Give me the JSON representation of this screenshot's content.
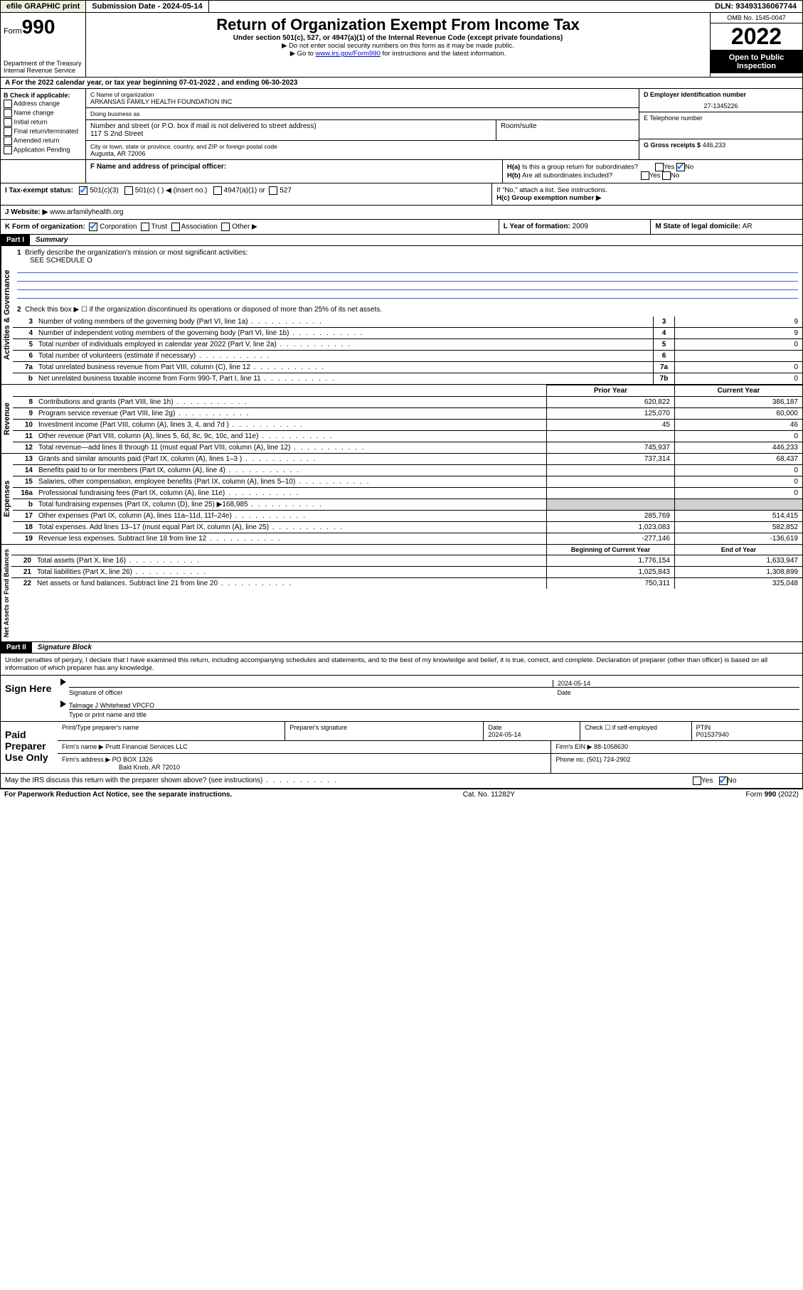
{
  "topbar": {
    "efile": "efile GRAPHIC print",
    "submission": "Submission Date - 2024-05-14",
    "dln": "DLN: 93493136067744"
  },
  "header": {
    "form_prefix": "Form",
    "form_no": "990",
    "dept": "Department of the Treasury",
    "irs": "Internal Revenue Service",
    "title": "Return of Organization Exempt From Income Tax",
    "sub": "Under section 501(c), 527, or 4947(a)(1) of the Internal Revenue Code (except private foundations)",
    "note1": "▶ Do not enter social security numbers on this form as it may be made public.",
    "note2_pre": "▶ Go to ",
    "note2_link": "www.irs.gov/Form990",
    "note2_post": " for instructions and the latest information.",
    "omb": "OMB No. 1545-0047",
    "year": "2022",
    "open": "Open to Public Inspection"
  },
  "rowA": "A For the 2022 calendar year, or tax year beginning 07-01-2022  , and ending 06-30-2023",
  "sectionB": {
    "header": "B Check if applicable:",
    "items": [
      "Address change",
      "Name change",
      "Initial return",
      "Final return/terminated",
      "Amended return",
      "Application Pending"
    ]
  },
  "sectionC": {
    "name_lbl": "C Name of organization",
    "name": "ARKANSAS FAMILY HEALTH FOUNDATION INC",
    "dba_lbl": "Doing business as",
    "addr_lbl": "Number and street (or P.O. box if mail is not delivered to street address)",
    "room_lbl": "Room/suite",
    "addr": "117 S 2nd Street",
    "city_lbl": "City or town, state or province, country, and ZIP or foreign postal code",
    "city": "Augusta, AR  72006"
  },
  "sectionD": {
    "lbl": "D Employer identification number",
    "val": "27-1345226"
  },
  "sectionE": {
    "lbl": "E Telephone number",
    "val": ""
  },
  "sectionG": {
    "lbl": "G Gross receipts $",
    "val": "446,233"
  },
  "sectionF": {
    "lbl": "F Name and address of principal officer:"
  },
  "sectionH": {
    "ha": "H(a)  Is this a group return for subordinates?",
    "hb": "H(b)  Are all subordinates included?",
    "hb_note": "If \"No,\" attach a list. See instructions.",
    "hc": "H(c)  Group exemption number ▶",
    "yes": "Yes",
    "no": "No"
  },
  "sectionI": {
    "lbl": "I    Tax-exempt status:",
    "opt1": "501(c)(3)",
    "opt2": "501(c) (  ) ◀ (insert no.)",
    "opt3": "4947(a)(1) or",
    "opt4": "527"
  },
  "sectionJ": {
    "lbl": "J    Website: ▶",
    "val": "www.arfamilyhealth.org"
  },
  "sectionK": {
    "lbl": "K Form of organization:",
    "corp": "Corporation",
    "trust": "Trust",
    "assoc": "Association",
    "other": "Other ▶"
  },
  "sectionL": {
    "lbl": "L Year of formation:",
    "val": "2009"
  },
  "sectionM": {
    "lbl": "M State of legal domicile:",
    "val": "AR"
  },
  "part1": {
    "hdr": "Part I",
    "title": "Summary",
    "vlabels": {
      "act": "Activities & Governance",
      "rev": "Revenue",
      "exp": "Expenses",
      "net": "Net Assets or Fund Balances"
    },
    "q1": "Briefly describe the organization's mission or most significant activities:",
    "q1_val": "SEE SCHEDULE O",
    "q2": "Check this box ▶ ☐  if the organization discontinued its operations or disposed of more than 25% of its net assets.",
    "rows_top": [
      {
        "n": "3",
        "d": "Number of voting members of the governing body (Part VI, line 1a)",
        "b": "3",
        "v": "9"
      },
      {
        "n": "4",
        "d": "Number of independent voting members of the governing body (Part VI, line 1b)",
        "b": "4",
        "v": "9"
      },
      {
        "n": "5",
        "d": "Total number of individuals employed in calendar year 2022 (Part V, line 2a)",
        "b": "5",
        "v": "0"
      },
      {
        "n": "6",
        "d": "Total number of volunteers (estimate if necessary)",
        "b": "6",
        "v": ""
      },
      {
        "n": "7a",
        "d": "Total unrelated business revenue from Part VIII, column (C), line 12",
        "b": "7a",
        "v": "0"
      },
      {
        "n": "b",
        "d": "Net unrelated business taxable income from Form 990-T, Part I, line 11",
        "b": "7b",
        "v": "0"
      }
    ],
    "col_prior": "Prior Year",
    "col_current": "Current Year",
    "rows_rev": [
      {
        "n": "8",
        "d": "Contributions and grants (Part VIII, line 1h)",
        "p": "620,822",
        "c": "386,187"
      },
      {
        "n": "9",
        "d": "Program service revenue (Part VIII, line 2g)",
        "p": "125,070",
        "c": "60,000"
      },
      {
        "n": "10",
        "d": "Investment income (Part VIII, column (A), lines 3, 4, and 7d )",
        "p": "45",
        "c": "46"
      },
      {
        "n": "11",
        "d": "Other revenue (Part VIII, column (A), lines 5, 6d, 8c, 9c, 10c, and 11e)",
        "p": "",
        "c": "0"
      },
      {
        "n": "12",
        "d": "Total revenue—add lines 8 through 11 (must equal Part VIII, column (A), line 12)",
        "p": "745,937",
        "c": "446,233"
      }
    ],
    "rows_exp": [
      {
        "n": "13",
        "d": "Grants and similar amounts paid (Part IX, column (A), lines 1–3 )",
        "p": "737,314",
        "c": "68,437"
      },
      {
        "n": "14",
        "d": "Benefits paid to or for members (Part IX, column (A), line 4)",
        "p": "",
        "c": "0"
      },
      {
        "n": "15",
        "d": "Salaries, other compensation, employee benefits (Part IX, column (A), lines 5–10)",
        "p": "",
        "c": "0"
      },
      {
        "n": "16a",
        "d": "Professional fundraising fees (Part IX, column (A), line 11e)",
        "p": "",
        "c": "0"
      },
      {
        "n": "b",
        "d": "Total fundraising expenses (Part IX, column (D), line 25) ▶168,985",
        "p": "shade",
        "c": "shade"
      },
      {
        "n": "17",
        "d": "Other expenses (Part IX, column (A), lines 11a–11d, 11f–24e)",
        "p": "285,769",
        "c": "514,415"
      },
      {
        "n": "18",
        "d": "Total expenses. Add lines 13–17 (must equal Part IX, column (A), line 25)",
        "p": "1,023,083",
        "c": "582,852"
      },
      {
        "n": "19",
        "d": "Revenue less expenses. Subtract line 18 from line 12",
        "p": "-277,146",
        "c": "-136,619"
      }
    ],
    "col_begin": "Beginning of Current Year",
    "col_end": "End of Year",
    "rows_net": [
      {
        "n": "20",
        "d": "Total assets (Part X, line 16)",
        "p": "1,776,154",
        "c": "1,633,947"
      },
      {
        "n": "21",
        "d": "Total liabilities (Part X, line 26)",
        "p": "1,025,843",
        "c": "1,308,899"
      },
      {
        "n": "22",
        "d": "Net assets or fund balances. Subtract line 21 from line 20",
        "p": "750,311",
        "c": "325,048"
      }
    ]
  },
  "part2": {
    "hdr": "Part II",
    "title": "Signature Block",
    "decl": "Under penalties of perjury, I declare that I have examined this return, including accompanying schedules and statements, and to the best of my knowledge and belief, it is true, correct, and complete. Declaration of preparer (other than officer) is based on all information of which preparer has any knowledge.",
    "sign_here": "Sign Here",
    "sig_officer": "Signature of officer",
    "sig_date": "2024-05-14",
    "date_lbl": "Date",
    "name_title": "Talmage J Whitehead  VPCFO",
    "name_title_lbl": "Type or print name and title",
    "paid": "Paid Preparer Use Only",
    "prep_name_lbl": "Print/Type preparer's name",
    "prep_sig_lbl": "Preparer's signature",
    "prep_date_lbl": "Date",
    "prep_date": "2024-05-14",
    "check_lbl": "Check ☐ if self-employed",
    "ptin_lbl": "PTIN",
    "ptin": "P01537940",
    "firm_name_lbl": "Firm's name    ▶",
    "firm_name": "Pruitt Financial Services LLC",
    "firm_ein_lbl": "Firm's EIN ▶",
    "firm_ein": "88-1058630",
    "firm_addr_lbl": "Firm's address ▶",
    "firm_addr1": "PO BOX 1326",
    "firm_addr2": "Bald Knob, AR  72010",
    "phone_lbl": "Phone no.",
    "phone": "(501) 724-2902",
    "discuss": "May the IRS discuss this return with the preparer shown above? (see instructions)"
  },
  "footer": {
    "left": "For Paperwork Reduction Act Notice, see the separate instructions.",
    "mid": "Cat. No. 11282Y",
    "right": "Form 990 (2022)"
  }
}
